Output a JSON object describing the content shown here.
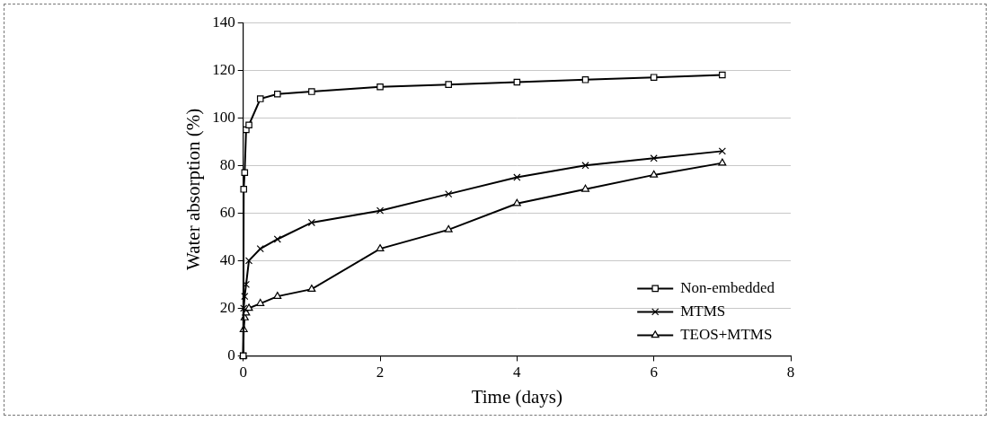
{
  "chart_data": {
    "type": "line",
    "x_label": "Time (days)",
    "y_label": "Water absorption (%)",
    "x": [
      0,
      0.007,
      0.021,
      0.042,
      0.083,
      0.25,
      0.5,
      1,
      2,
      3,
      4,
      5,
      6,
      7
    ],
    "series": [
      {
        "name": "Non-embedded",
        "color": "#000000",
        "marker": "square",
        "line_style": "solid",
        "values": [
          0,
          70,
          77,
          95,
          97,
          108,
          110,
          111,
          113,
          114,
          115,
          116,
          117,
          118
        ]
      },
      {
        "name": "MTMS",
        "color": "#000000",
        "marker": "cross",
        "line_style": "solid",
        "values": [
          0,
          20,
          25,
          30,
          40,
          45,
          49,
          56,
          61,
          68,
          75,
          80,
          83,
          86
        ]
      },
      {
        "name": "TEOS+MTMS",
        "color": "#000000",
        "marker": "triangle",
        "line_style": "solid",
        "values": [
          0,
          11,
          16,
          18,
          20,
          22,
          25,
          28,
          45,
          53,
          64,
          70,
          76,
          81
        ]
      }
    ],
    "xlim": [
      0,
      8
    ],
    "xticks": [
      0,
      2,
      4,
      6,
      8
    ],
    "ylim": [
      0,
      140
    ],
    "yticks": [
      0,
      20,
      40,
      60,
      80,
      100,
      120,
      140
    ],
    "grid": true,
    "legend": "lower right"
  }
}
